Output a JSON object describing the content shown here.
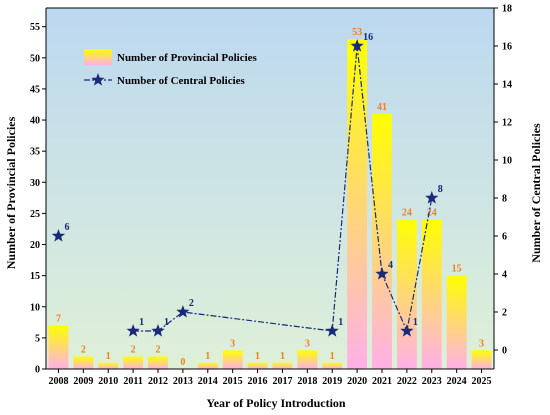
{
  "chart_data": {
    "type": "bar+line",
    "categories": [
      "2008",
      "2009",
      "2010",
      "2011",
      "2012",
      "2013",
      "2014",
      "2015",
      "2016",
      "2017",
      "2018",
      "2019",
      "2020",
      "2021",
      "2022",
      "2023",
      "2024",
      "2025"
    ],
    "series": [
      {
        "name": "Number of Provincial Policies",
        "type": "bar",
        "axis": "left",
        "values": [
          7,
          2,
          1,
          2,
          2,
          0,
          1,
          3,
          1,
          1,
          3,
          1,
          53,
          41,
          24,
          24,
          15,
          3
        ],
        "labels": [
          "7",
          "2",
          "1",
          "2",
          "2",
          "0",
          "1",
          "3",
          "1",
          "1",
          "3",
          "1",
          "53",
          "41",
          "24",
          "24",
          "15",
          "3"
        ],
        "color_top": "#ffff00",
        "color_bottom": "#ffb0e8",
        "label_color": "#f08020"
      },
      {
        "name": "Number of Central Policies",
        "type": "line",
        "axis": "right",
        "x": [
          "2008",
          "2011",
          "2012",
          "2013",
          "2019",
          "2020",
          "2021",
          "2022",
          "2023"
        ],
        "values": [
          6,
          1,
          1,
          2,
          1,
          16,
          4,
          1,
          8
        ],
        "labels": [
          "6",
          "1",
          "1",
          "2",
          "1",
          "16",
          "4",
          "1",
          "8"
        ],
        "color": "#1a2a7a",
        "line_dash": "dash-dot"
      }
    ],
    "xlabel": "Year of Policy Introduction",
    "ylabel_left": "Number of Provincial Policies",
    "ylabel_right": "Number of Central Policies",
    "ylim_left": [
      0,
      58
    ],
    "yticks_left": [
      "0",
      "5",
      "10",
      "15",
      "20",
      "25",
      "30",
      "35",
      "40",
      "45",
      "50",
      "55"
    ],
    "ylim_right": [
      -1,
      18
    ],
    "yticks_right": [
      "0",
      "2",
      "4",
      "6",
      "8",
      "10",
      "12",
      "14",
      "16",
      "18"
    ],
    "legend_position": "top-left",
    "grid": false,
    "background_gradient": [
      "#bcd8f0",
      "#dff0d8"
    ]
  }
}
